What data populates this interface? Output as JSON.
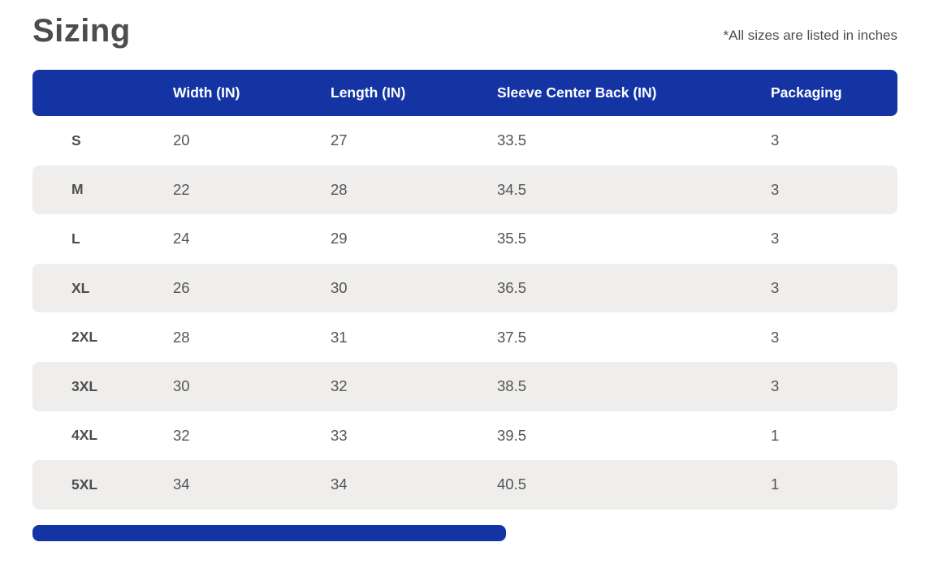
{
  "page": {
    "title": "Sizing",
    "note": "*All sizes are listed in inches"
  },
  "colors": {
    "header_bg": "#1434a4",
    "header_text": "#ffffff",
    "row_alt_bg": "#efeeed",
    "title_text": "#4d4d4d",
    "note_text": "#4d4d4d",
    "value_text": "#545454"
  },
  "table": {
    "columns": [
      "",
      "Width (IN)",
      "Length (IN)",
      "Sleeve Center Back (IN)",
      "Packaging"
    ],
    "rows": [
      {
        "size": "S",
        "width": "20",
        "length": "27",
        "sleeve": "33.5",
        "packaging": "3"
      },
      {
        "size": "M",
        "width": "22",
        "length": "28",
        "sleeve": "34.5",
        "packaging": "3"
      },
      {
        "size": "L",
        "width": "24",
        "length": "29",
        "sleeve": "35.5",
        "packaging": "3"
      },
      {
        "size": "XL",
        "width": "26",
        "length": "30",
        "sleeve": "36.5",
        "packaging": "3"
      },
      {
        "size": "2XL",
        "width": "28",
        "length": "31",
        "sleeve": "37.5",
        "packaging": "3"
      },
      {
        "size": "3XL",
        "width": "30",
        "length": "32",
        "sleeve": "38.5",
        "packaging": "3"
      },
      {
        "size": "4XL",
        "width": "32",
        "length": "33",
        "sleeve": "39.5",
        "packaging": "1"
      },
      {
        "size": "5XL",
        "width": "34",
        "length": "34",
        "sleeve": "40.5",
        "packaging": "1"
      }
    ]
  }
}
